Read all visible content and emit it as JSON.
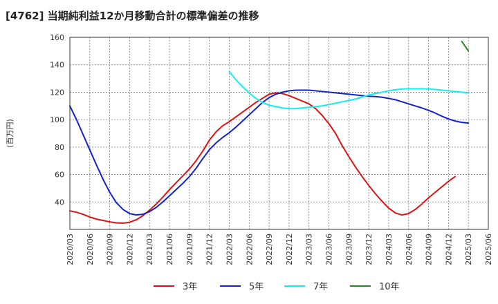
{
  "page": {
    "title": "[4762]  当期純利益12か月移動合計の標準偏差の推移"
  },
  "chart_data": {
    "type": "line",
    "title": "[4762]  当期純利益12か月移動合計の標準偏差の推移",
    "xlabel": "",
    "ylabel": "(百万円)",
    "ylim": [
      20,
      160
    ],
    "yticks": [
      40,
      60,
      80,
      100,
      120,
      140,
      160
    ],
    "xlim": [
      "2020-03",
      "2025-06"
    ],
    "xticks": [
      "2020/03",
      "2020/06",
      "2020/09",
      "2020/12",
      "2021/03",
      "2021/06",
      "2021/09",
      "2021/12",
      "2022/03",
      "2022/06",
      "2022/09",
      "2022/12",
      "2023/03",
      "2023/06",
      "2023/09",
      "2023/12",
      "2024/03",
      "2024/06",
      "2024/09",
      "2024/12",
      "2025/03",
      "2025/06"
    ],
    "grid": true,
    "legend_position": "bottom",
    "series": [
      {
        "name": "3年",
        "color": "#dd1111",
        "points": [
          [
            "2020-03",
            33.5
          ],
          [
            "2020-04",
            32.5
          ],
          [
            "2020-05",
            31.0
          ],
          [
            "2020-06",
            29.0
          ],
          [
            "2020-07",
            27.5
          ],
          [
            "2020-08",
            26.5
          ],
          [
            "2020-09",
            25.5
          ],
          [
            "2020-10",
            24.8
          ],
          [
            "2020-11",
            24.5
          ],
          [
            "2020-12",
            25.2
          ],
          [
            "2021-01",
            27.0
          ],
          [
            "2021-02",
            30.0
          ],
          [
            "2021-03",
            34.0
          ],
          [
            "2021-04",
            38.5
          ],
          [
            "2021-05",
            43.5
          ],
          [
            "2021-06",
            49.0
          ],
          [
            "2021-07",
            54.0
          ],
          [
            "2021-08",
            59.0
          ],
          [
            "2021-09",
            64.0
          ],
          [
            "2021-10",
            70.0
          ],
          [
            "2021-11",
            77.0
          ],
          [
            "2021-12",
            85.0
          ],
          [
            "2022-01",
            91.0
          ],
          [
            "2022-02",
            95.5
          ],
          [
            "2022-03",
            98.5
          ],
          [
            "2022-04",
            102.0
          ],
          [
            "2022-05",
            105.5
          ],
          [
            "2022-06",
            109.0
          ],
          [
            "2022-07",
            112.5
          ],
          [
            "2022-08",
            115.5
          ],
          [
            "2022-09",
            118.5
          ],
          [
            "2022-10",
            119.5
          ],
          [
            "2022-11",
            119.0
          ],
          [
            "2022-12",
            117.5
          ],
          [
            "2023-01",
            115.5
          ],
          [
            "2023-02",
            113.5
          ],
          [
            "2023-03",
            111.5
          ],
          [
            "2023-04",
            108.0
          ],
          [
            "2023-05",
            103.0
          ],
          [
            "2023-06",
            97.0
          ],
          [
            "2023-07",
            90.0
          ],
          [
            "2023-08",
            81.0
          ],
          [
            "2023-09",
            73.0
          ],
          [
            "2023-10",
            65.5
          ],
          [
            "2023-11",
            58.5
          ],
          [
            "2023-12",
            52.0
          ],
          [
            "2024-01",
            46.0
          ],
          [
            "2024-02",
            40.5
          ],
          [
            "2024-03",
            35.5
          ],
          [
            "2024-04",
            32.0
          ],
          [
            "2024-05",
            30.5
          ],
          [
            "2024-06",
            31.5
          ],
          [
            "2024-07",
            34.5
          ],
          [
            "2024-08",
            38.5
          ],
          [
            "2024-09",
            43.0
          ],
          [
            "2024-10",
            47.0
          ],
          [
            "2024-11",
            51.0
          ],
          [
            "2024-12",
            55.0
          ],
          [
            "2025-01",
            58.5
          ]
        ]
      },
      {
        "name": "5年",
        "color": "#1122cc",
        "points": [
          [
            "2020-03",
            110.0
          ],
          [
            "2020-04",
            100.0
          ],
          [
            "2020-05",
            89.0
          ],
          [
            "2020-06",
            78.0
          ],
          [
            "2020-07",
            67.0
          ],
          [
            "2020-08",
            56.5
          ],
          [
            "2020-09",
            47.0
          ],
          [
            "2020-10",
            39.5
          ],
          [
            "2020-11",
            34.5
          ],
          [
            "2020-12",
            31.5
          ],
          [
            "2021-01",
            30.5
          ],
          [
            "2021-02",
            31.0
          ],
          [
            "2021-03",
            33.0
          ],
          [
            "2021-04",
            36.0
          ],
          [
            "2021-05",
            40.0
          ],
          [
            "2021-06",
            44.5
          ],
          [
            "2021-07",
            49.0
          ],
          [
            "2021-08",
            53.5
          ],
          [
            "2021-09",
            58.5
          ],
          [
            "2021-10",
            64.5
          ],
          [
            "2021-11",
            71.5
          ],
          [
            "2021-12",
            78.0
          ],
          [
            "2022-01",
            83.0
          ],
          [
            "2022-02",
            87.0
          ],
          [
            "2022-03",
            90.5
          ],
          [
            "2022-04",
            94.5
          ],
          [
            "2022-05",
            99.0
          ],
          [
            "2022-06",
            103.5
          ],
          [
            "2022-07",
            108.0
          ],
          [
            "2022-08",
            112.5
          ],
          [
            "2022-09",
            116.0
          ],
          [
            "2022-10",
            118.5
          ],
          [
            "2022-11",
            120.0
          ],
          [
            "2022-12",
            121.0
          ],
          [
            "2023-01",
            121.5
          ],
          [
            "2023-02",
            121.5
          ],
          [
            "2023-03",
            121.5
          ],
          [
            "2023-04",
            121.0
          ],
          [
            "2023-05",
            120.5
          ],
          [
            "2023-06",
            120.0
          ],
          [
            "2023-07",
            119.5
          ],
          [
            "2023-08",
            119.0
          ],
          [
            "2023-09",
            118.5
          ],
          [
            "2023-10",
            118.0
          ],
          [
            "2023-11",
            117.5
          ],
          [
            "2023-12",
            117.0
          ],
          [
            "2024-01",
            116.8
          ],
          [
            "2024-02",
            116.3
          ],
          [
            "2024-03",
            115.5
          ],
          [
            "2024-04",
            114.5
          ],
          [
            "2024-05",
            113.0
          ],
          [
            "2024-06",
            111.5
          ],
          [
            "2024-07",
            110.0
          ],
          [
            "2024-08",
            108.5
          ],
          [
            "2024-09",
            106.8
          ],
          [
            "2024-10",
            104.8
          ],
          [
            "2024-11",
            102.5
          ],
          [
            "2024-12",
            100.5
          ],
          [
            "2025-01",
            99.0
          ],
          [
            "2025-02",
            98.0
          ],
          [
            "2025-03",
            97.5
          ]
        ]
      },
      {
        "name": "7年",
        "color": "#11eeee",
        "points": [
          [
            "2022-03",
            135.0
          ],
          [
            "2022-04",
            129.0
          ],
          [
            "2022-05",
            124.0
          ],
          [
            "2022-06",
            119.5
          ],
          [
            "2022-07",
            115.5
          ],
          [
            "2022-08",
            112.5
          ],
          [
            "2022-09",
            110.5
          ],
          [
            "2022-10",
            109.5
          ],
          [
            "2022-11",
            108.5
          ],
          [
            "2022-12",
            108.0
          ],
          [
            "2023-01",
            108.0
          ],
          [
            "2023-02",
            108.5
          ],
          [
            "2023-03",
            109.0
          ],
          [
            "2023-04",
            109.5
          ],
          [
            "2023-05",
            110.0
          ],
          [
            "2023-06",
            111.0
          ],
          [
            "2023-07",
            112.0
          ],
          [
            "2023-08",
            113.0
          ],
          [
            "2023-09",
            114.0
          ],
          [
            "2023-10",
            115.0
          ],
          [
            "2023-11",
            116.5
          ],
          [
            "2023-12",
            118.0
          ],
          [
            "2024-01",
            119.0
          ],
          [
            "2024-02",
            120.0
          ],
          [
            "2024-03",
            121.0
          ],
          [
            "2024-04",
            121.8
          ],
          [
            "2024-05",
            122.3
          ],
          [
            "2024-06",
            122.5
          ],
          [
            "2024-07",
            122.5
          ],
          [
            "2024-08",
            122.5
          ],
          [
            "2024-09",
            122.3
          ],
          [
            "2024-10",
            122.0
          ],
          [
            "2024-11",
            121.5
          ],
          [
            "2024-12",
            121.0
          ],
          [
            "2025-01",
            120.5
          ],
          [
            "2025-02",
            120.0
          ],
          [
            "2025-03",
            119.5
          ]
        ]
      },
      {
        "name": "10年",
        "color": "#228822",
        "points": [
          [
            "2025-02",
            157.0
          ],
          [
            "2025-03",
            150.0
          ]
        ]
      }
    ]
  }
}
